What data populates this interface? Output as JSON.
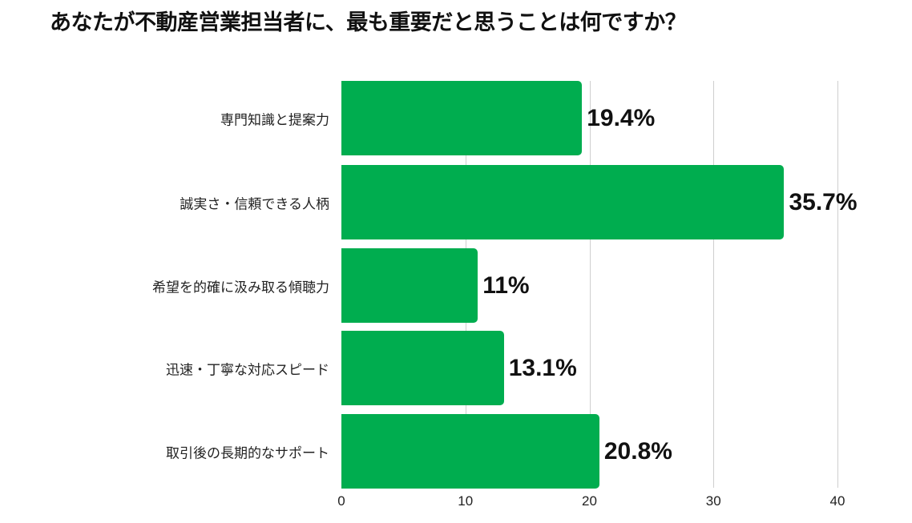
{
  "title": "あなたが不動産営業担当者に、最も重要だと思うことは何ですか？",
  "colors": {
    "bar": "#00ad4f",
    "grid": "#cfcfcf",
    "text": "#111111"
  },
  "chart_data": {
    "type": "bar",
    "orientation": "horizontal",
    "title": "あなたが不動産営業担当者に、最も重要だと思うことは何ですか？",
    "categories": [
      "専門知識と提案力",
      "誠実さ・信頼できる人柄",
      "希望を的確に汲み取る傾聴力",
      "迅速・丁寧な対応スピード",
      "取引後の長期的なサポート"
    ],
    "values": [
      19.4,
      35.7,
      11,
      13.1,
      20.8
    ],
    "value_labels": [
      "19.4%",
      "35.7%",
      "11%",
      "13.1%",
      "20.8%"
    ],
    "xlabel": "",
    "ylabel": "",
    "xlim": [
      0,
      40
    ],
    "xticks": [
      "0",
      "10",
      "20",
      "30",
      "40"
    ],
    "grid": true,
    "legend": null
  }
}
